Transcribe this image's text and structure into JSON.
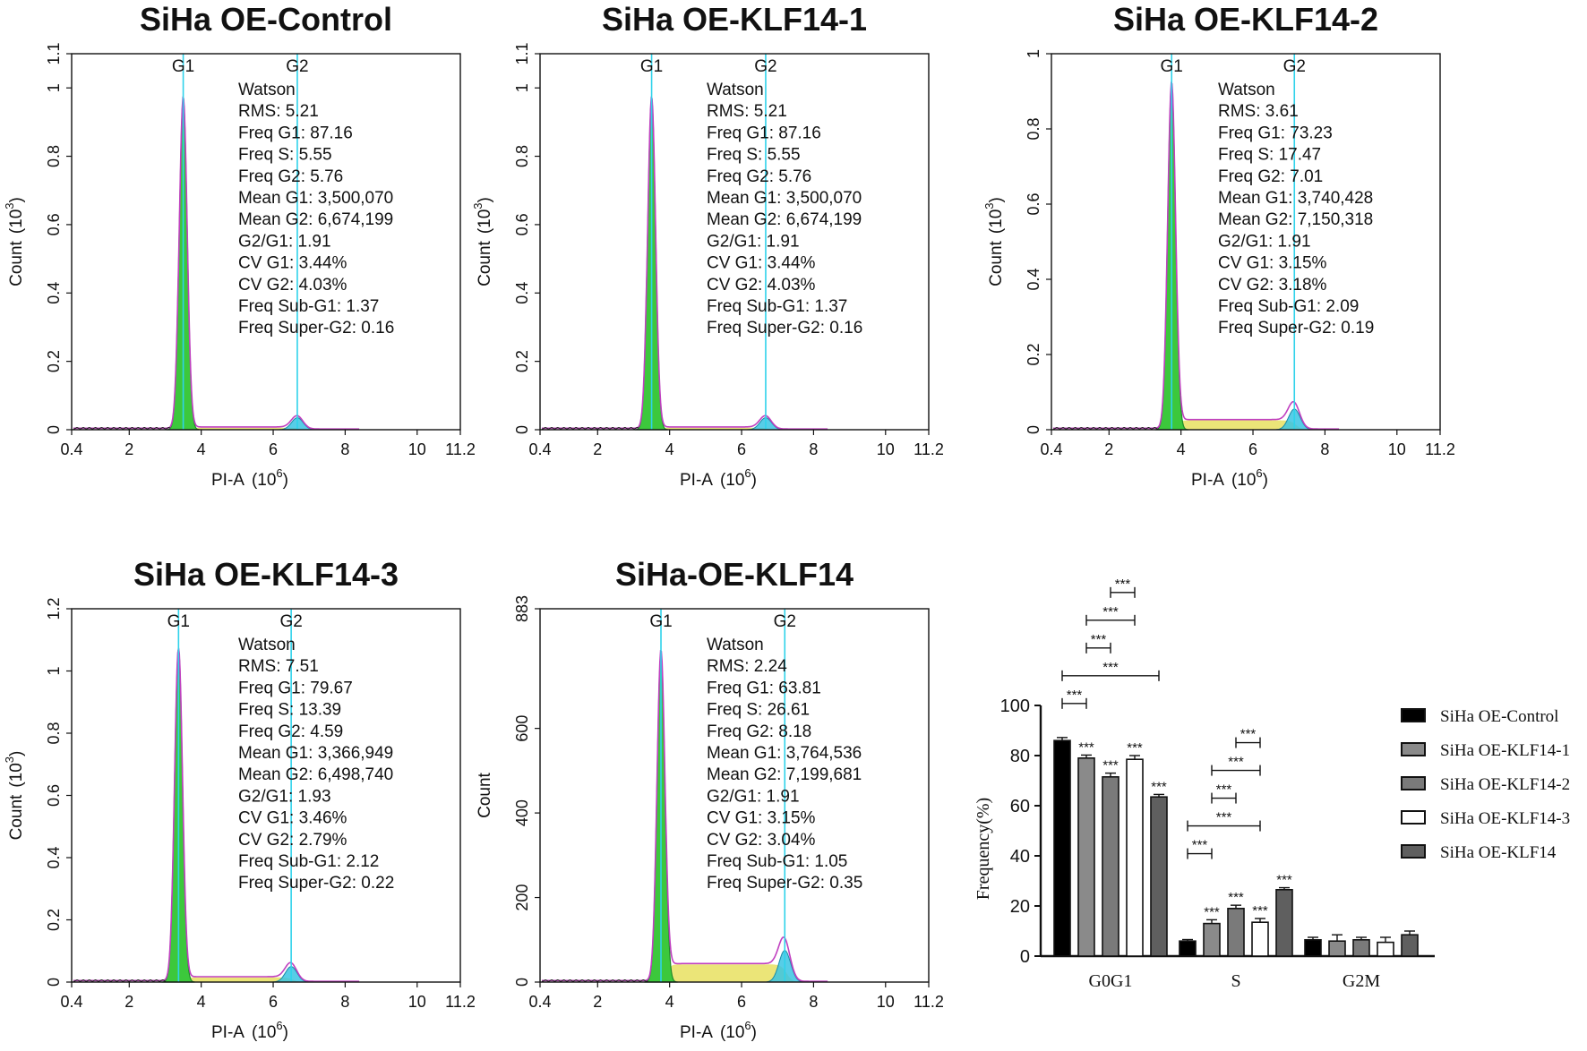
{
  "colors": {
    "g1_fill": "#3cc83c",
    "g2_fill": "#39c4e3",
    "s_fill": "#e8e060",
    "marker": "#2fd2ea",
    "fit_line": "#c040c0",
    "bar_control": "#000000",
    "bar_klf14_1": "#8a8a8a",
    "bar_klf14_2": "#7a7a7a",
    "bar_klf14_3": "#ffffff",
    "bar_klf14": "#5f5f5f"
  },
  "chart_data": [
    {
      "type": "area",
      "title": "SiHa OE-Control",
      "xlabel": "PI-A",
      "xlabel_exp": "6",
      "ylabel": "Count",
      "ylabel_exp": "3",
      "xticks": [
        "0.4",
        "2",
        "4",
        "6",
        "8",
        "10",
        "11.2"
      ],
      "xlim": [
        0.4,
        11.2
      ],
      "yticks": [
        "0",
        "0.2",
        "0.4",
        "0.6",
        "0.8",
        "1",
        "1.1"
      ],
      "ylim": [
        0,
        1.1
      ],
      "g1_label": "G1",
      "g2_label": "G2",
      "g1_pos": 3.5,
      "g1_peak": 0.97,
      "g2_pos": 6.67,
      "g2_peak": 0.035,
      "s_level": 0.006,
      "stats": [
        "Watson",
        "RMS: 5.21",
        "Freq G1: 87.16",
        "Freq S: 5.55",
        "Freq G2: 5.76",
        "Mean G1: 3,500,070",
        "Mean G2: 6,674,199",
        "G2/G1: 1.91",
        "CV G1: 3.44%",
        "CV G2: 4.03%",
        "Freq Sub-G1: 1.37",
        "Freq Super-G2: 0.16"
      ]
    },
    {
      "type": "area",
      "title": "SiHa OE-KLF14-1",
      "xlabel": "PI-A",
      "xlabel_exp": "6",
      "ylabel": "Count",
      "ylabel_exp": "3",
      "xticks": [
        "0.4",
        "2",
        "4",
        "6",
        "8",
        "10",
        "11.2"
      ],
      "xlim": [
        0.4,
        11.2
      ],
      "yticks": [
        "0",
        "0.2",
        "0.4",
        "0.6",
        "0.8",
        "1",
        "1.1"
      ],
      "ylim": [
        0,
        1.1
      ],
      "g1_label": "G1",
      "g2_label": "G2",
      "g1_pos": 3.5,
      "g1_peak": 0.97,
      "g2_pos": 6.67,
      "g2_peak": 0.035,
      "s_level": 0.006,
      "stats": [
        "Watson",
        "RMS: 5.21",
        "Freq G1: 87.16",
        "Freq S: 5.55",
        "Freq G2: 5.76",
        "Mean G1: 3,500,070",
        "Mean G2: 6,674,199",
        "G2/G1: 1.91",
        "CV G1: 3.44%",
        "CV G2: 4.03%",
        "Freq Sub-G1: 1.37",
        "Freq Super-G2: 0.16"
      ]
    },
    {
      "type": "area",
      "title": "SiHa OE-KLF14-2",
      "xlabel": "PI-A",
      "xlabel_exp": "6",
      "ylabel": "Count",
      "ylabel_exp": "3",
      "xticks": [
        "0.4",
        "2",
        "4",
        "6",
        "8",
        "10",
        "11.2"
      ],
      "xlim": [
        0.4,
        11.2
      ],
      "yticks": [
        "0",
        "0.2",
        "0.4",
        "0.6",
        "0.8",
        "1"
      ],
      "ylim": [
        0,
        1
      ],
      "g1_label": "G1",
      "g2_label": "G2",
      "g1_pos": 3.74,
      "g1_peak": 0.92,
      "g2_pos": 7.15,
      "g2_peak": 0.055,
      "s_level": 0.025,
      "stats": [
        "Watson",
        "RMS: 3.61",
        "Freq G1: 73.23",
        "Freq S: 17.47",
        "Freq G2: 7.01",
        "Mean G1: 3,740,428",
        "Mean G2: 7,150,318",
        "G2/G1: 1.91",
        "CV G1: 3.15%",
        "CV G2: 3.18%",
        "Freq Sub-G1: 2.09",
        "Freq Super-G2: 0.19"
      ]
    },
    {
      "type": "area",
      "title": "SiHa OE-KLF14-3",
      "xlabel": "PI-A",
      "xlabel_exp": "6",
      "ylabel": "Count",
      "ylabel_exp": "3",
      "xticks": [
        "0.4",
        "2",
        "4",
        "6",
        "8",
        "10",
        "11.2"
      ],
      "xlim": [
        0.4,
        11.2
      ],
      "yticks": [
        "0",
        "0.2",
        "0.4",
        "0.6",
        "0.8",
        "1",
        "1.2"
      ],
      "ylim": [
        0,
        1.2
      ],
      "g1_label": "G1",
      "g2_label": "G2",
      "g1_pos": 3.37,
      "g1_peak": 1.07,
      "g2_pos": 6.5,
      "g2_peak": 0.05,
      "s_level": 0.015,
      "stats": [
        "Watson",
        "RMS: 7.51",
        "Freq G1: 79.67",
        "Freq S: 13.39",
        "Freq G2: 4.59",
        "Mean G1: 3,366,949",
        "Mean G2: 6,498,740",
        "G2/G1: 1.93",
        "CV G1: 3.46%",
        "CV G2: 2.79%",
        "Freq Sub-G1: 2.12",
        "Freq Super-G2: 0.22"
      ]
    },
    {
      "type": "area",
      "title": "SiHa-OE-KLF14",
      "xlabel": "PI-A",
      "xlabel_exp": "6",
      "ylabel": "Count",
      "ylabel_exp": "",
      "xticks": [
        "0.4",
        "2",
        "4",
        "6",
        "8",
        "10",
        "11.2"
      ],
      "xlim": [
        0.4,
        11.2
      ],
      "yticks": [
        "0",
        "200",
        "400",
        "600",
        "883"
      ],
      "ylim": [
        0,
        883
      ],
      "g1_label": "G1",
      "g2_label": "G2",
      "g1_pos": 3.76,
      "g1_peak": 780,
      "g2_pos": 7.2,
      "g2_peak": 75,
      "s_level": 42,
      "stats": [
        "Watson",
        "RMS: 2.24",
        "Freq G1: 63.81",
        "Freq S: 26.61",
        "Freq G2: 8.18",
        "Mean G1: 3,764,536",
        "Mean G2: 7,199,681",
        "G2/G1: 1.91",
        "CV G1: 3.15%",
        "CV G2: 3.04%",
        "Freq Sub-G1: 1.05",
        "Freq Super-G2: 0.35"
      ]
    },
    {
      "type": "bar",
      "title": "",
      "xlabel": "",
      "ylabel": "Frequency(%)",
      "categories": [
        "G0G1",
        "S",
        "G2M"
      ],
      "yticks": [
        "0",
        "20",
        "40",
        "60",
        "80",
        "100"
      ],
      "ylim": [
        0,
        100
      ],
      "series": [
        {
          "name": "SiHa OE-Control",
          "values": [
            86,
            6,
            6.5
          ],
          "errors": [
            1.2,
            0.6,
            1.0
          ]
        },
        {
          "name": "SiHa OE-KLF14-1",
          "values": [
            79,
            13,
            6
          ],
          "errors": [
            1.2,
            1.5,
            2.5
          ]
        },
        {
          "name": "SiHa OE-KLF14-2",
          "values": [
            71.5,
            19,
            6.5
          ],
          "errors": [
            1.5,
            1.3,
            1.0
          ]
        },
        {
          "name": "SiHa OE-KLF14-3",
          "values": [
            78.5,
            13.5,
            5.5
          ],
          "errors": [
            1.5,
            1.5,
            2.0
          ]
        },
        {
          "name": "SiHa OE-KLF14",
          "values": [
            63.5,
            26.5,
            8.5
          ],
          "errors": [
            1.0,
            0.8,
            1.5
          ]
        }
      ],
      "significance_label": "***",
      "bar_stars": [
        [
          false,
          true,
          true,
          true,
          true
        ],
        [
          false,
          true,
          true,
          true,
          true
        ],
        [
          false,
          false,
          false,
          false,
          false
        ]
      ],
      "brackets": [
        {
          "category": 0,
          "from": 0,
          "to": 1,
          "level": 0
        },
        {
          "category": 0,
          "from": 0,
          "to": 4,
          "level": 1
        },
        {
          "category": 0,
          "from": 1,
          "to": 2,
          "level": 2
        },
        {
          "category": 0,
          "from": 1,
          "to": 3,
          "level": 3
        },
        {
          "category": 0,
          "from": 2,
          "to": 3,
          "level": 4
        },
        {
          "category": 1,
          "from": 0,
          "to": 1,
          "level": 0
        },
        {
          "category": 1,
          "from": 0,
          "to": 3,
          "level": 1
        },
        {
          "category": 1,
          "from": 1,
          "to": 2,
          "level": 2
        },
        {
          "category": 1,
          "from": 1,
          "to": 3,
          "level": 3
        },
        {
          "category": 1,
          "from": 2,
          "to": 3,
          "level": 4
        }
      ]
    }
  ]
}
